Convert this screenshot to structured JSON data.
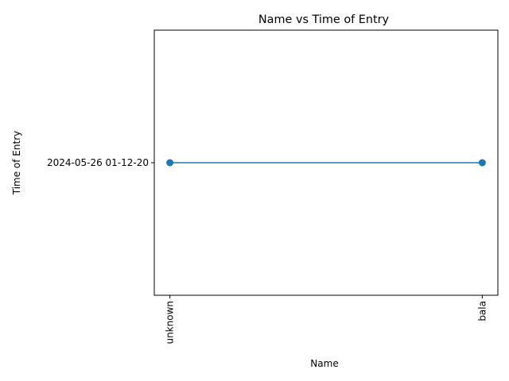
{
  "chart_data": {
    "type": "line",
    "title": "Name vs Time of Entry",
    "xlabel": "Name",
    "ylabel": "Time of Entry",
    "categories": [
      "unknown",
      "bala"
    ],
    "y_categories": [
      "2024-05-26 01-12-20"
    ],
    "series": [
      {
        "values": [
          "2024-05-26 01-12-20",
          "2024-05-26 01-12-20"
        ],
        "color": "#1f77b4",
        "marker": "circle"
      }
    ],
    "x_tick_rotation": "vertical",
    "grid": false,
    "legend": "none"
  }
}
